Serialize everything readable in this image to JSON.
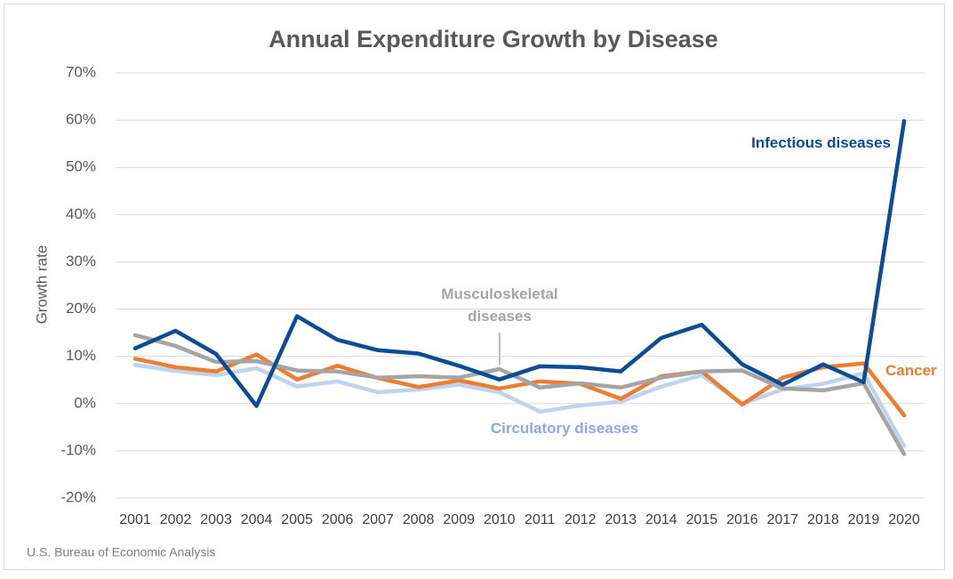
{
  "chart_data": {
    "type": "line",
    "title": "Annual Expenditure Growth by Disease",
    "y_label": "Growth rate",
    "source": "U.S. Bureau of Economic Analysis",
    "categories": [
      "2001",
      "2002",
      "2003",
      "2004",
      "2005",
      "2006",
      "2007",
      "2008",
      "2009",
      "2010",
      "2011",
      "2012",
      "2013",
      "2014",
      "2015",
      "2016",
      "2017",
      "2018",
      "2019",
      "2020"
    ],
    "series": [
      {
        "name": "Infectious diseases",
        "color": "#0b4c95",
        "values": [
          11.7,
          15.4,
          10.5,
          -0.5,
          18.5,
          13.5,
          11.3,
          10.6,
          8,
          5.1,
          7.9,
          7.7,
          6.8,
          13.9,
          16.7,
          8.3,
          4,
          8.3,
          4.5,
          59.8
        ]
      },
      {
        "name": "Musculoskeletal diseases",
        "color": "#a5a5a5",
        "values": [
          14.5,
          12.2,
          8.8,
          9,
          7,
          6.8,
          5.5,
          5.8,
          5.5,
          7.3,
          3.4,
          4.3,
          3.4,
          5.5,
          6.8,
          7,
          3.2,
          2.8,
          4.3,
          -10.7
        ]
      },
      {
        "name": "Cancer",
        "color": "#ed7d31",
        "values": [
          9.5,
          7.7,
          6.8,
          10.4,
          5.1,
          8,
          5.4,
          3.5,
          4.9,
          3.2,
          4.7,
          4.2,
          1,
          5.8,
          6.8,
          -0.2,
          5.5,
          7.7,
          8.5,
          -2.5
        ]
      },
      {
        "name": "Circulatory diseases",
        "color": "#bfd3ee",
        "values": [
          8.2,
          6.9,
          6,
          7.5,
          3.6,
          4.7,
          2.4,
          3,
          4,
          2.4,
          -1.7,
          -0.4,
          0.4,
          3.6,
          6,
          0,
          3,
          4.2,
          6.4,
          -9
        ]
      }
    ],
    "ylim": [
      -20,
      70
    ],
    "yticks": [
      {
        "value": -20,
        "label": "-20%"
      },
      {
        "value": -10,
        "label": "-10%"
      },
      {
        "value": 0,
        "label": "0%"
      },
      {
        "value": 10,
        "label": "10%"
      },
      {
        "value": 20,
        "label": "20%"
      },
      {
        "value": 30,
        "label": "30%"
      },
      {
        "value": 40,
        "label": "40%"
      },
      {
        "value": 50,
        "label": "50%"
      },
      {
        "value": 60,
        "label": "60%"
      },
      {
        "value": 70,
        "label": "70%"
      }
    ],
    "grid": true
  }
}
